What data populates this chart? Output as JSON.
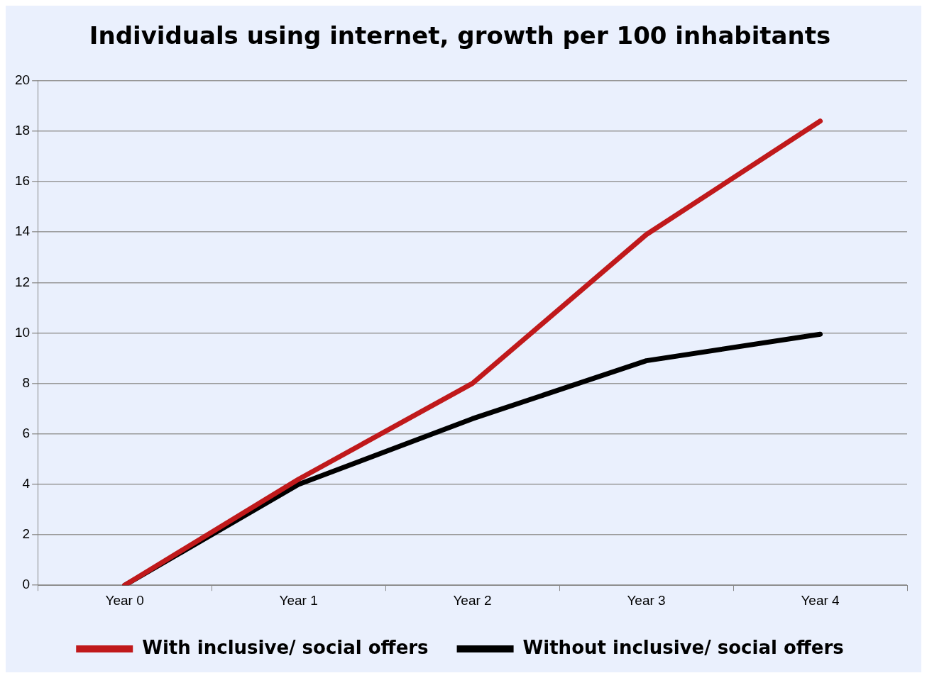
{
  "chart_data": {
    "type": "line",
    "title": "Individuals using internet, growth per 100 inhabitants",
    "categories": [
      "Year 0",
      "Year 1",
      "Year 2",
      "Year 3",
      "Year 4"
    ],
    "series": [
      {
        "name": "With inclusive/ social offers",
        "color": "#c0191b",
        "values": [
          0,
          4.2,
          8,
          13.9,
          18.4
        ]
      },
      {
        "name": "Without inclusive/ social offers",
        "color": "#000000",
        "values": [
          0,
          4,
          6.6,
          8.9,
          9.95
        ]
      }
    ],
    "ylim": [
      0,
      20
    ],
    "yticks": [
      0,
      2,
      4,
      6,
      8,
      10,
      12,
      14,
      16,
      18,
      20
    ],
    "grid": "y",
    "legend": "bottom",
    "marker": "none",
    "line_style": "solid"
  }
}
